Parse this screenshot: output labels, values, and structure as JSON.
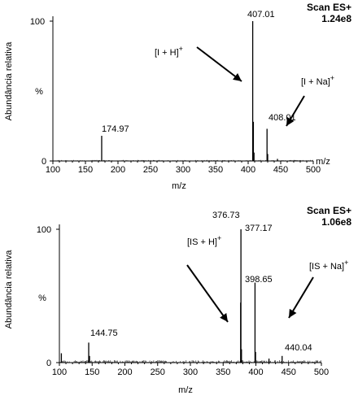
{
  "chart_data": [
    {
      "type": "line",
      "title": "Scan ES+",
      "subtitle": "1.24e8",
      "ylabel": "Abundância relativa",
      "xlabel": "m/z",
      "xlabel_end": "m/z",
      "y_percent_label": "%",
      "xlim": [
        100,
        500
      ],
      "ylim": [
        0,
        100
      ],
      "x_ticks": [
        100,
        150,
        200,
        250,
        300,
        350,
        400,
        450,
        500
      ],
      "y_ticks": [
        0,
        100
      ],
      "peaks": [
        {
          "x": 174.97,
          "y": 18
        },
        {
          "x": 407.01,
          "y": 100
        },
        {
          "x": 408.01,
          "y": 28
        },
        {
          "x": 409.0,
          "y": 6
        },
        {
          "x": 429.0,
          "y": 23
        },
        {
          "x": 430.0,
          "y": 5
        },
        {
          "x": 445.0,
          "y": 1.5
        }
      ],
      "peak_labels": [
        {
          "x": 174.97,
          "text": "174.97"
        },
        {
          "x": 407.01,
          "text": "407.01"
        },
        {
          "x": 408.01,
          "text": "408.01"
        }
      ],
      "annotations": [
        {
          "text": "[I + H]",
          "sup": "+"
        },
        {
          "text": "[I + Na]",
          "sup": "+"
        }
      ]
    },
    {
      "type": "line",
      "title": "Scan ES+",
      "subtitle": "1.06e8",
      "ylabel": "Abundância relativa",
      "xlabel": "m/z",
      "xlabel_end": "",
      "y_percent_label": "%",
      "xlim": [
        100,
        500
      ],
      "ylim": [
        0,
        100
      ],
      "x_ticks": [
        100,
        150,
        200,
        250,
        300,
        350,
        400,
        450,
        500
      ],
      "y_ticks": [
        0,
        100
      ],
      "peaks": [
        {
          "x": 103.0,
          "y": 7
        },
        {
          "x": 144.75,
          "y": 15
        },
        {
          "x": 146.0,
          "y": 5
        },
        {
          "x": 376.73,
          "y": 45
        },
        {
          "x": 377.17,
          "y": 100
        },
        {
          "x": 378.0,
          "y": 10
        },
        {
          "x": 398.65,
          "y": 60
        },
        {
          "x": 399.5,
          "y": 8
        },
        {
          "x": 420.0,
          "y": 3
        },
        {
          "x": 440.04,
          "y": 5
        }
      ],
      "peak_labels": [
        {
          "x": 144.75,
          "text": "144.75"
        },
        {
          "x": 376.73,
          "text": "376.73"
        },
        {
          "x": 377.17,
          "text": "377.17"
        },
        {
          "x": 398.65,
          "text": "398.65"
        },
        {
          "x": 440.04,
          "text": "440.04"
        }
      ],
      "annotations": [
        {
          "text": "[IS + H]",
          "sup": "+"
        },
        {
          "text": "[IS + Na]",
          "sup": "+"
        }
      ]
    }
  ]
}
